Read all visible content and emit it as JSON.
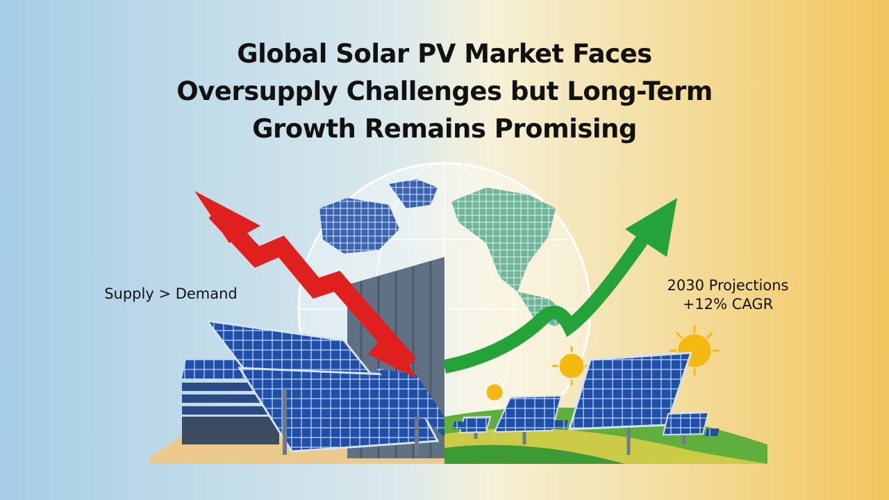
{
  "header": {
    "title_lines": [
      "Global Solar PV Market Faces",
      "Oversupply Challenges but Long-Term",
      "Growth Remains Promising"
    ]
  },
  "left_label": "Supply > Demand",
  "right_label": {
    "line1": "2030 Projections",
    "line2": "+12% CAGR"
  }
}
